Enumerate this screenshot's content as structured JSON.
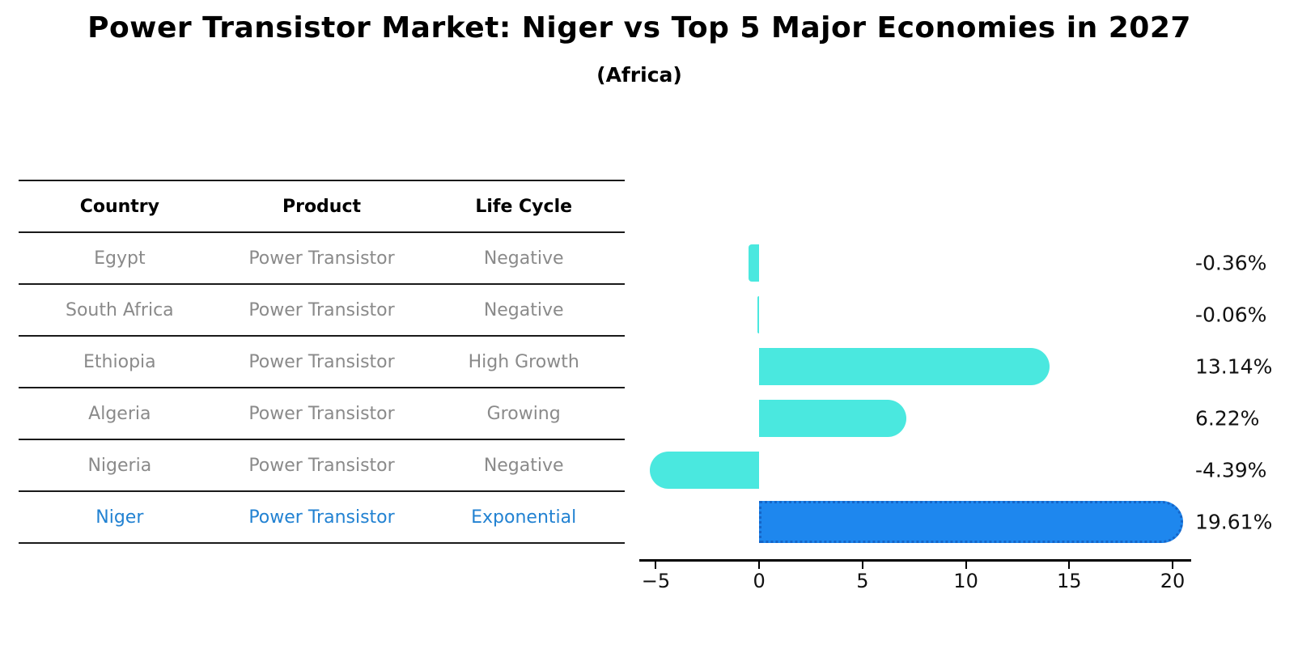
{
  "chart_data": {
    "type": "bar",
    "orientation": "horizontal",
    "title": "Power Transistor Market: Niger vs Top 5 Major Economies in 2027",
    "subtitle": "(Africa)",
    "categories": [
      "Egypt",
      "South Africa",
      "Ethiopia",
      "Algeria",
      "Nigeria",
      "Niger"
    ],
    "values": [
      -0.36,
      -0.06,
      13.14,
      6.22,
      -4.39,
      19.61
    ],
    "value_labels": [
      "-0.36%",
      "-0.06%",
      "13.14%",
      "6.22%",
      "-4.39%",
      "19.61%"
    ],
    "highlight_index": 5,
    "xlim": [
      -5.8,
      20.9
    ],
    "xticks": [
      -5,
      0,
      5,
      10,
      15,
      20
    ],
    "xtick_labels": [
      "−5",
      "0",
      "5",
      "10",
      "15",
      "20"
    ],
    "xlabel": "",
    "ylabel": "",
    "grid": false,
    "legend": "none",
    "colors": {
      "bar": "#4ae8df",
      "highlight_bar": "#1e87ee",
      "highlight_border": "#1565c8",
      "gray_text": "#8a8a8a",
      "highlight_text": "#2282d2",
      "axis": "#000000"
    }
  },
  "table": {
    "headers": [
      "Country",
      "Product",
      "Life Cycle"
    ],
    "rows": [
      {
        "country": "Egypt",
        "product": "Power Transistor",
        "life_cycle": "Negative",
        "highlight": false
      },
      {
        "country": "South Africa",
        "product": "Power Transistor",
        "life_cycle": "Negative",
        "highlight": false
      },
      {
        "country": "Ethiopia",
        "product": "Power Transistor",
        "life_cycle": "High Growth",
        "highlight": false
      },
      {
        "country": "Algeria",
        "product": "Power Transistor",
        "life_cycle": "Growing",
        "highlight": false
      },
      {
        "country": "Nigeria",
        "product": "Power Transistor",
        "life_cycle": "Negative",
        "highlight": false
      },
      {
        "country": "Niger",
        "product": "Power Transistor",
        "life_cycle": "Exponential",
        "highlight": true
      }
    ]
  }
}
